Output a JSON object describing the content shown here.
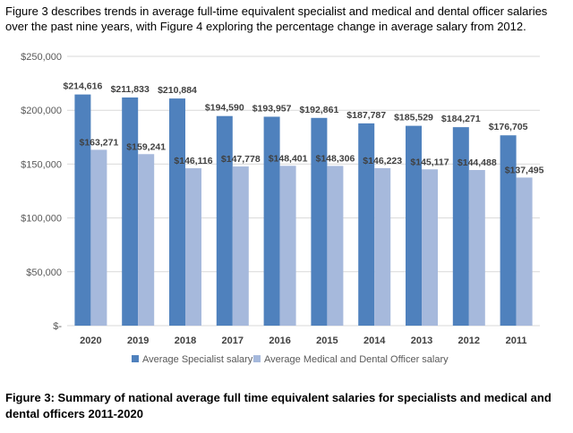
{
  "intro_text": "Figure 3 describes trends in average full-time equivalent specialist and medical and dental officer salaries over the past nine years, with Figure 4 exploring the percentage change in average salary from 2012.",
  "caption_text": "Figure 3: Summary of national average full time equivalent salaries for specialists and medical and dental officers 2011-2020",
  "chart_data": {
    "type": "bar",
    "categories": [
      "2020",
      "2019",
      "2018",
      "2017",
      "2016",
      "2015",
      "2014",
      "2013",
      "2012",
      "2011"
    ],
    "series": [
      {
        "name": "Average Specialist salary",
        "color": "#4f81bd",
        "values": [
          214616,
          211833,
          210884,
          194590,
          193957,
          192861,
          187787,
          185529,
          184271,
          176705
        ],
        "labels": [
          "$214,616",
          "$211,833",
          "$210,884",
          "$194,590",
          "$193,957",
          "$192,861",
          "$187,787",
          "$185,529",
          "$184,271",
          "$176,705"
        ]
      },
      {
        "name": "Average Medical and Dental Officer salary",
        "color": "#a6b9dc",
        "values": [
          163271,
          159241,
          146116,
          147778,
          148401,
          148306,
          146223,
          145117,
          144488,
          137495
        ],
        "labels": [
          "$163,271",
          "$159,241",
          "$146,116",
          "$147,778",
          "$148,401",
          "$148,306",
          "$146,223",
          "$145,117",
          "$144,488",
          "$137,495"
        ]
      }
    ],
    "yticks": [
      0,
      50000,
      100000,
      150000,
      200000,
      250000
    ],
    "ytick_labels": [
      "$-",
      "$50,000",
      "$100,000",
      "$150,000",
      "$200,000",
      "$250,000"
    ],
    "ylim": [
      0,
      250000
    ],
    "grid": true,
    "gridline_color": "#d9d9d9",
    "legend_position": "bottom"
  }
}
